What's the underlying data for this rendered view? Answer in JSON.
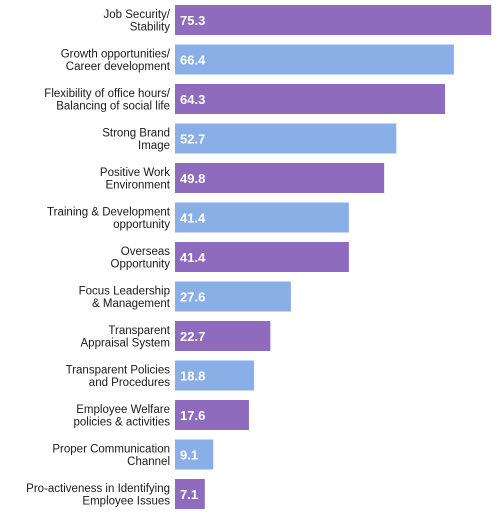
{
  "chart_data": {
    "type": "bar",
    "orientation": "horizontal",
    "categories": [
      [
        "Job Security/",
        "Stability"
      ],
      [
        "Growth opportunities/",
        "Career development"
      ],
      [
        "Flexibility of office hours/",
        "Balancing of social life"
      ],
      [
        "Strong Brand",
        "Image"
      ],
      [
        "Positive Work",
        "Environment"
      ],
      [
        "Training & Development",
        "opportunity"
      ],
      [
        "Overseas",
        "Opportunity"
      ],
      [
        "Focus Leadership",
        "& Management"
      ],
      [
        "Transparent",
        "Appraisal System"
      ],
      [
        "Transparent Policies",
        "and Procedures"
      ],
      [
        "Employee Welfare",
        "policies & activities"
      ],
      [
        "Proper Communication",
        "Channel"
      ],
      [
        "Pro-activeness in Identifying",
        "Employee Issues"
      ]
    ],
    "values": [
      75.3,
      66.4,
      64.3,
      52.7,
      49.8,
      41.4,
      41.4,
      27.6,
      22.7,
      18.8,
      17.6,
      9.1,
      7.1
    ],
    "value_labels": [
      "75.3",
      "66.4",
      "64.3",
      "52.7",
      "49.8",
      "41.4",
      "41.4",
      "27.6",
      "22.7",
      "18.8",
      "17.6",
      "9.1",
      "7.1"
    ],
    "bar_colors": [
      "purple",
      "blue",
      "purple",
      "blue",
      "purple",
      "blue",
      "purple",
      "blue",
      "purple",
      "blue",
      "purple",
      "blue",
      "purple"
    ],
    "colors": {
      "purple": "#8e6bbd",
      "blue": "#8aaee6"
    },
    "xlim": [
      0,
      80
    ],
    "grid": false,
    "legend": "none",
    "data_labels": "inside-bar-start"
  }
}
